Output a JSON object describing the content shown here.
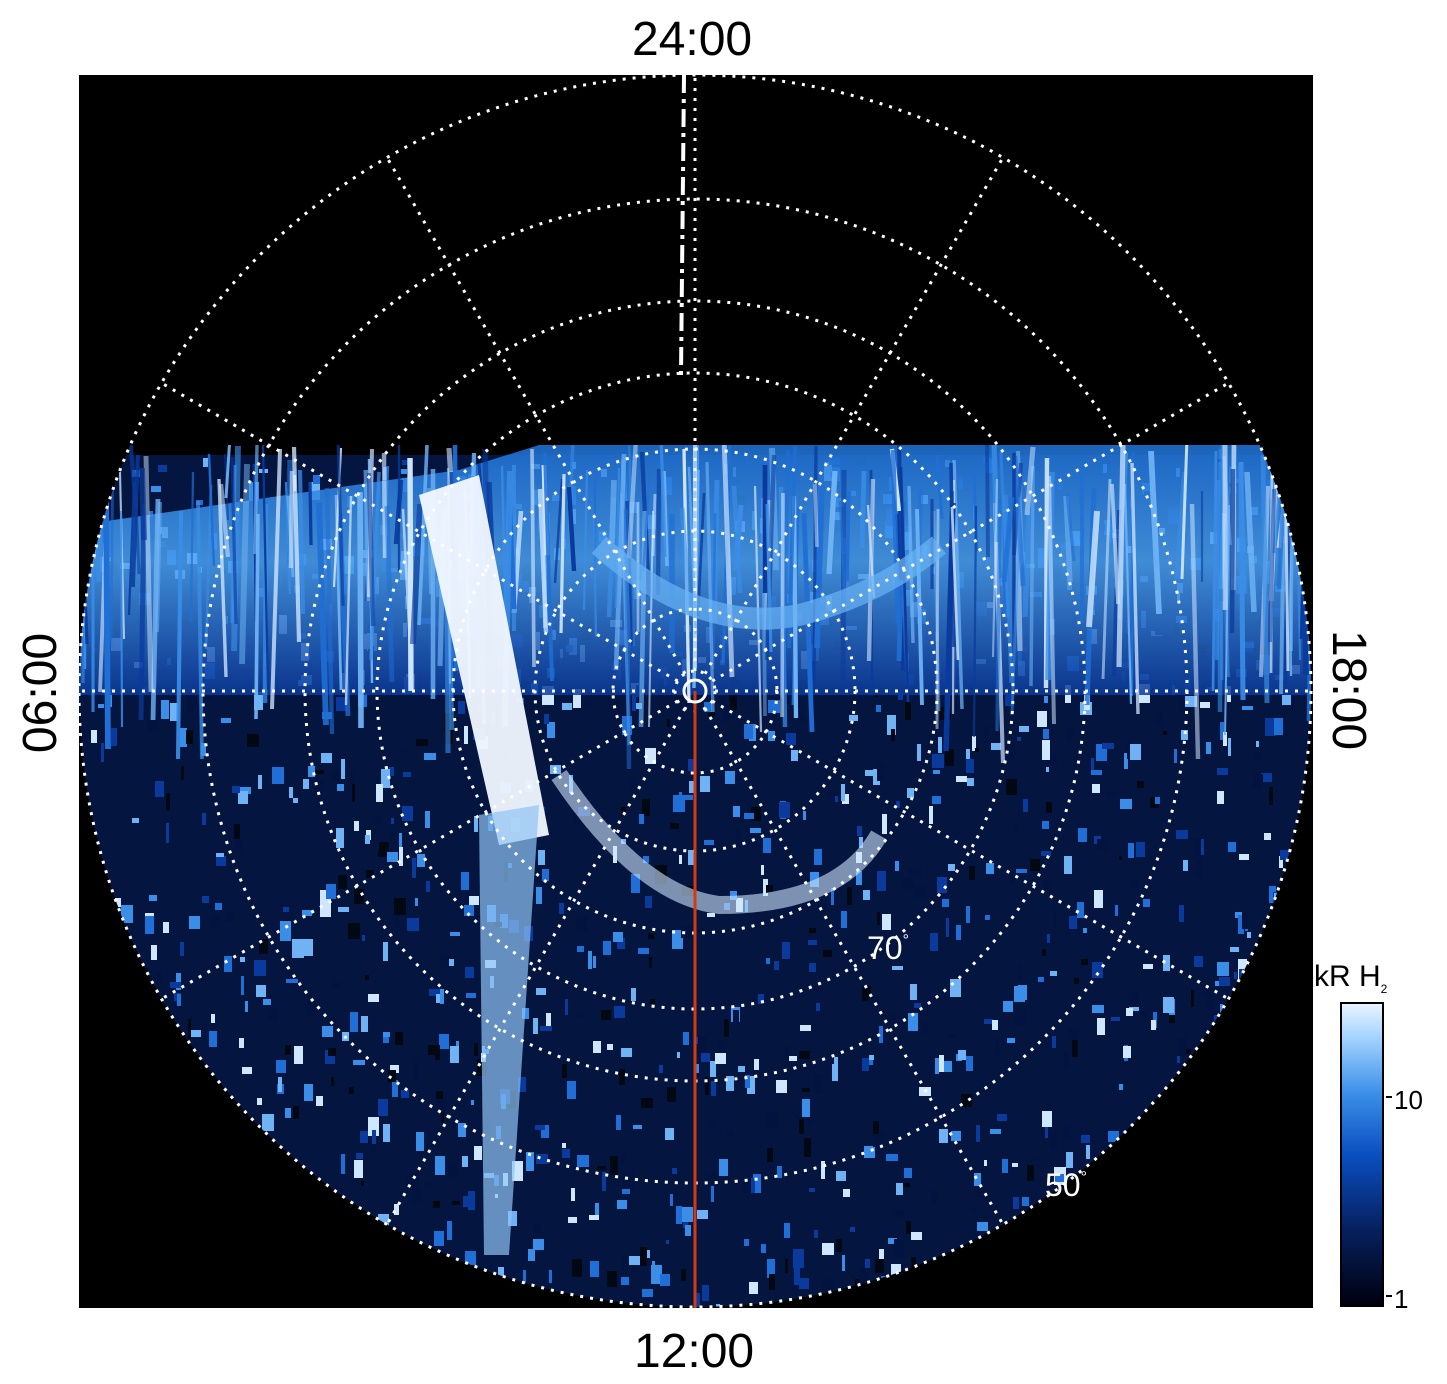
{
  "figure": {
    "local_time_labels": {
      "top": "24:00",
      "bottom": "12:00",
      "left": "06:00",
      "right": "18:00"
    },
    "latitude_labels": [
      {
        "text": "70",
        "degree": "°"
      },
      {
        "text": "50",
        "degree": "°"
      }
    ],
    "colorbar": {
      "title": "kR H",
      "title_subscript": "2",
      "tick_labels": [
        "10",
        "1"
      ],
      "scale": "log"
    },
    "colors": {
      "background": "#000000",
      "aurora_bright": "#e8f4ff",
      "aurora_mid": "#3a8ee8",
      "aurora_dark": "#06205e",
      "grid": "#ffffff",
      "meridian_line": "#d43a12"
    }
  }
}
